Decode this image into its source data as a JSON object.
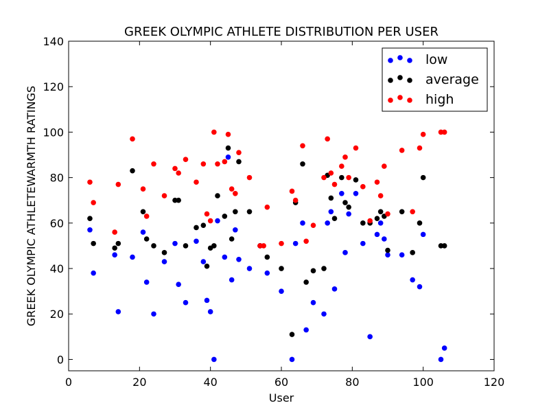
{
  "chart_data": {
    "type": "scatter",
    "title": "GREEK OLYMPIC ATHLETE DISTRIBUTION PER USER",
    "xlabel": "User",
    "ylabel": "GREEK OLYMPIC ATHLETEWARMTH RATINGS",
    "xlim": [
      0,
      120
    ],
    "ylim": [
      -5,
      140
    ],
    "xticks": [
      0,
      20,
      40,
      60,
      80,
      100,
      120
    ],
    "yticks": [
      0,
      20,
      40,
      60,
      80,
      100,
      120,
      140
    ],
    "grid": false,
    "legend_position": "top-right",
    "series": [
      {
        "name": "low",
        "color": "#0000ff",
        "x": [
          6,
          7,
          13,
          14,
          18,
          21,
          22,
          24,
          27,
          30,
          31,
          33,
          36,
          38,
          39,
          40,
          41,
          42,
          44,
          45,
          46,
          47,
          48,
          51,
          54,
          56,
          60,
          63,
          64,
          66,
          67,
          69,
          72,
          73,
          74,
          75,
          77,
          78,
          79,
          81,
          83,
          85,
          87,
          88,
          89,
          90,
          94,
          97,
          99,
          100,
          105,
          106
        ],
        "y": [
          57,
          38,
          46,
          21,
          45,
          56,
          34,
          20,
          43,
          51,
          33,
          25,
          52,
          43,
          26,
          21,
          0,
          61,
          45,
          89,
          35,
          57,
          44,
          40,
          50,
          38,
          30,
          0,
          51,
          60,
          13,
          25,
          20,
          60,
          65,
          31,
          73,
          47,
          64,
          73,
          51,
          10,
          55,
          60,
          53,
          46,
          46,
          35,
          32,
          55,
          0,
          5
        ]
      },
      {
        "name": "average",
        "color": "#000000",
        "x": [
          6,
          7,
          13,
          14,
          18,
          21,
          22,
          24,
          27,
          30,
          31,
          33,
          36,
          38,
          39,
          40,
          41,
          42,
          44,
          45,
          46,
          47,
          48,
          51,
          54,
          56,
          60,
          63,
          64,
          66,
          67,
          69,
          72,
          73,
          74,
          75,
          77,
          78,
          79,
          81,
          83,
          85,
          87,
          88,
          89,
          90,
          94,
          97,
          99,
          100,
          105,
          106
        ],
        "y": [
          62,
          51,
          49,
          51,
          83,
          65,
          53,
          50,
          47,
          70,
          70,
          50,
          58,
          59,
          41,
          49,
          50,
          72,
          63,
          93,
          53,
          65,
          87,
          65,
          50,
          45,
          40,
          11,
          69,
          86,
          34,
          39,
          40,
          81,
          71,
          62,
          80,
          69,
          67,
          79,
          60,
          60,
          62,
          65,
          63,
          48,
          65,
          47,
          60,
          80,
          50,
          50
        ]
      },
      {
        "name": "high",
        "color": "#ff0000",
        "x": [
          6,
          7,
          13,
          14,
          18,
          21,
          22,
          24,
          27,
          30,
          31,
          33,
          36,
          38,
          39,
          40,
          41,
          42,
          44,
          45,
          46,
          47,
          48,
          51,
          54,
          55,
          56,
          60,
          63,
          64,
          66,
          67,
          69,
          72,
          73,
          74,
          75,
          77,
          78,
          79,
          81,
          83,
          85,
          87,
          88,
          89,
          90,
          94,
          97,
          99,
          100,
          105,
          106
        ],
        "y": [
          78,
          69,
          56,
          77,
          97,
          75,
          63,
          86,
          72,
          84,
          82,
          88,
          78,
          86,
          64,
          61,
          100,
          86,
          87,
          99,
          75,
          73,
          91,
          80,
          50,
          50,
          67,
          51,
          74,
          70,
          94,
          52,
          59,
          80,
          97,
          82,
          77,
          85,
          89,
          80,
          93,
          76,
          61,
          78,
          72,
          85,
          64,
          92,
          65,
          93,
          99,
          100,
          100
        ]
      }
    ]
  }
}
